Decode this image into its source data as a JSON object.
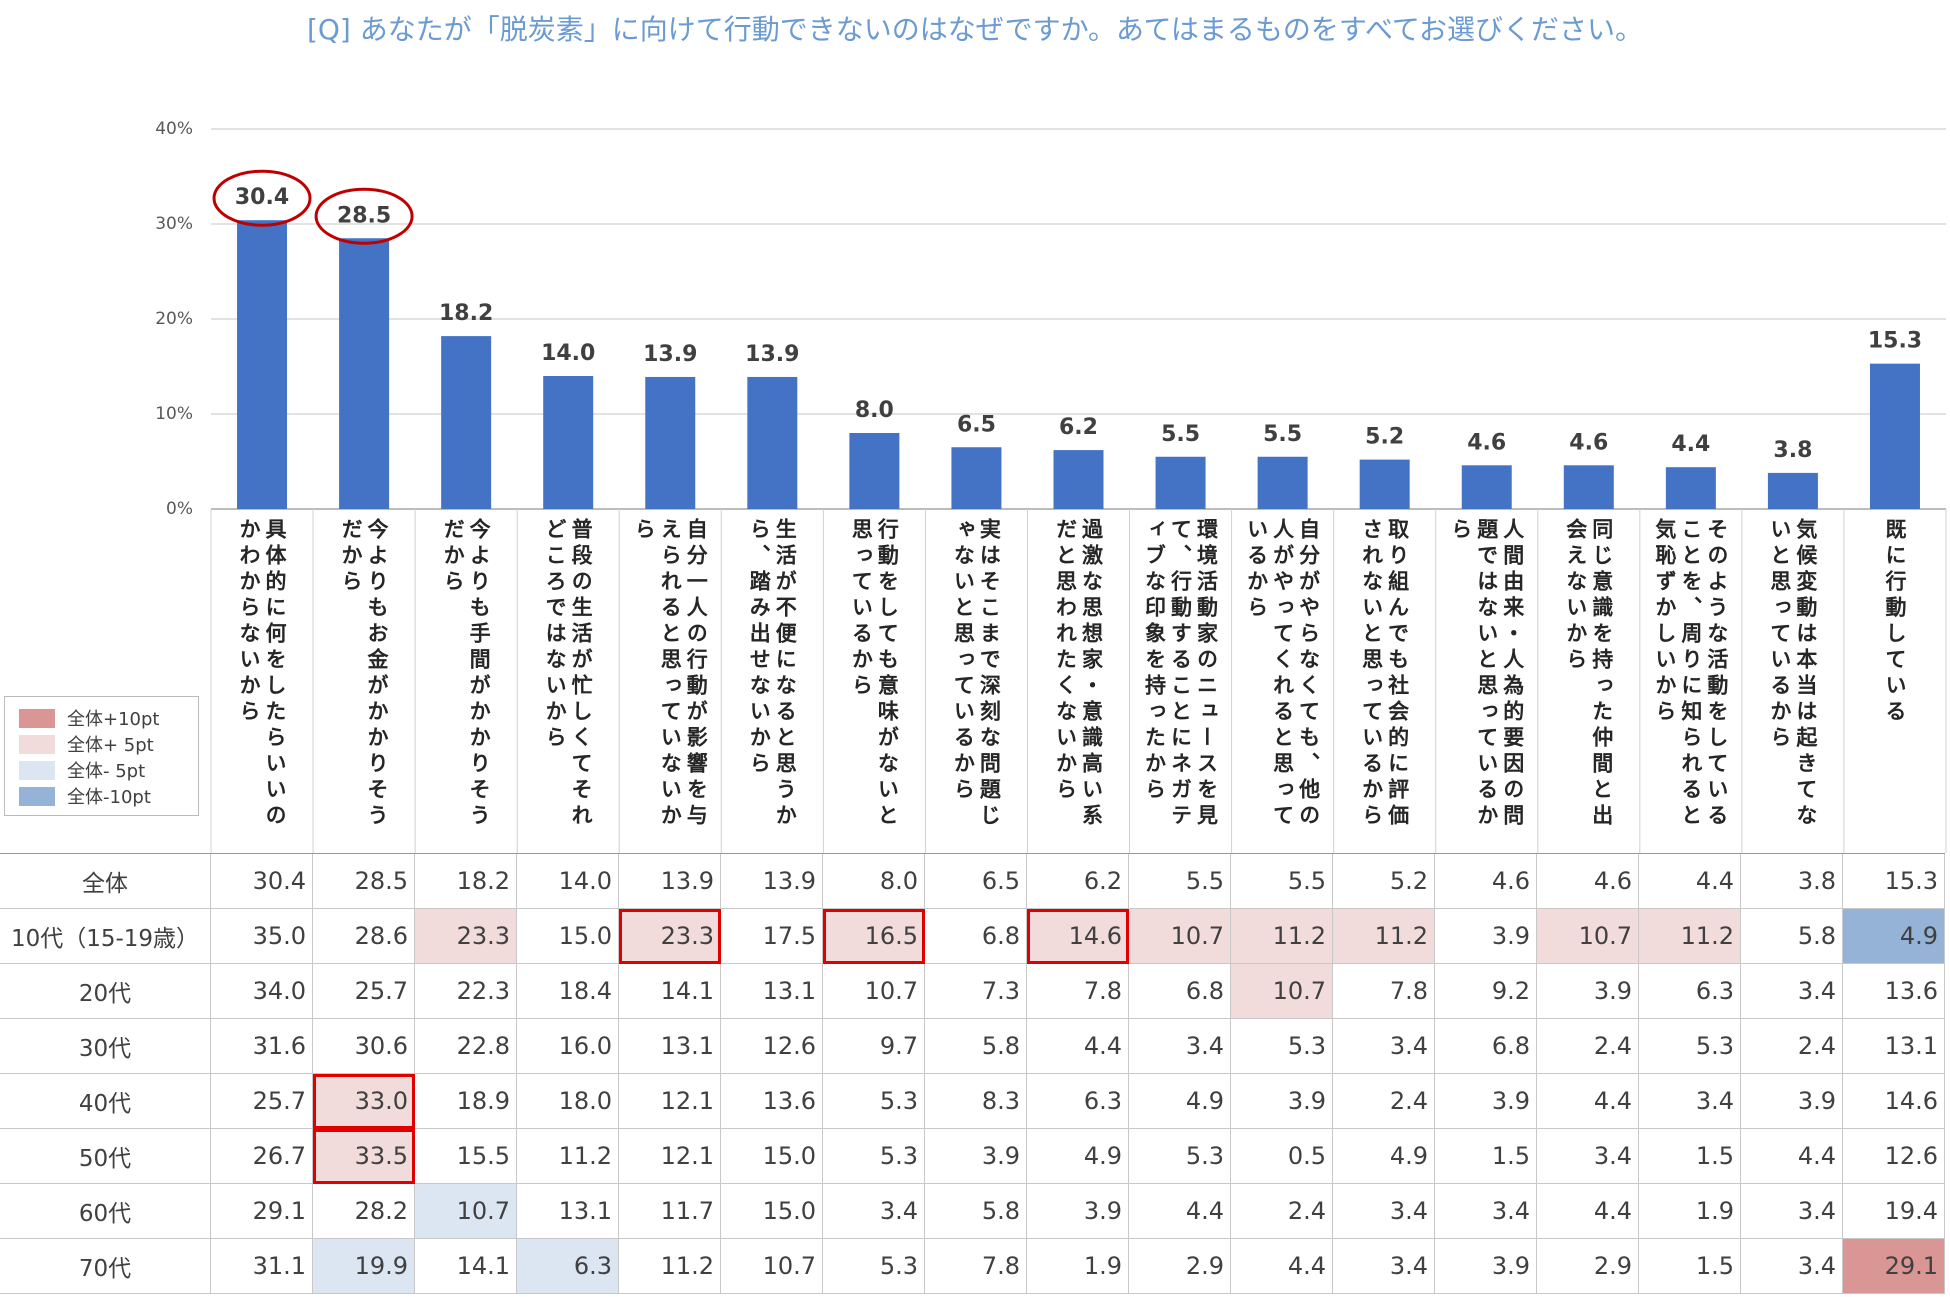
{
  "chart_data": {
    "type": "bar",
    "title": "[Q] あなたが「脱炭素」に向けて行動できないのはなぜですか。あてはまるものをすべてお選びください。",
    "categories": [
      "具体的に何をしたらいいのかわからないから",
      "今よりもお金がかかりそうだから",
      "今よりも手間がかかりそうだから",
      "普段の生活が忙しくてそれどころではないから",
      "自分一人の行動が影響を与えられると思っていないから",
      "生活が不便になると思うから、踏み出せないから",
      "行動をしても意味がないと思っているから",
      "実はそこまで深刻な問題じゃないと思っているから",
      "過激な思想家・意識高い系だと思われたくないから",
      "環境活動家のニュースを見て、行動することにネガティブな印象を持ったから",
      "自分がやらなくても、他の人がやってくれると思っているから",
      "取り組んでも社会的に評価されないと思っているから",
      "人間由来・人為的要因の問題ではないと思っているから",
      "同じ意識を持った仲間と出会えないから",
      "そのような活動をしていることを、周りに知られると気恥ずかしいから",
      "気候変動は本当は起きてないと思っているから",
      "既に行動している"
    ],
    "values": [
      30.4,
      28.5,
      18.2,
      14.0,
      13.9,
      13.9,
      8.0,
      6.5,
      6.2,
      5.5,
      5.5,
      5.2,
      4.6,
      4.6,
      4.4,
      3.8,
      15.3
    ],
    "value_labels": [
      "30.4",
      "28.5",
      "18.2",
      "14.0",
      "13.9",
      "13.9",
      "8.0",
      "6.5",
      "6.2",
      "5.5",
      "5.5",
      "5.2",
      "4.6",
      "4.6",
      "4.4",
      "3.8",
      "15.3"
    ],
    "color": "#4472c4",
    "circled": [
      0,
      1
    ],
    "circle_color": "#c00000",
    "ylim": [
      0,
      40
    ],
    "yticks": [
      {
        "value": 0,
        "label": "0%"
      },
      {
        "value": 10,
        "label": "10%"
      },
      {
        "value": 20,
        "label": "20%"
      },
      {
        "value": 30,
        "label": "30%"
      },
      {
        "value": 40,
        "label": "40%"
      }
    ],
    "grid": true
  },
  "table": {
    "legend": [
      {
        "label": "全体+10pt",
        "color": "#d99694"
      },
      {
        "label": "全体+ 5pt",
        "color": "#f2dcdb"
      },
      {
        "label": "全体- 5pt",
        "color": "#dce6f2"
      },
      {
        "label": "全体-10pt",
        "color": "#95b3d7"
      }
    ],
    "box_color": "#e00000",
    "rows": [
      {
        "label": "全体",
        "cells": [
          "30.4",
          "28.5",
          "18.2",
          "14.0",
          "13.9",
          "13.9",
          "8.0",
          "6.5",
          "6.2",
          "5.5",
          "5.5",
          "5.2",
          "4.6",
          "4.6",
          "4.4",
          "3.8",
          "15.3"
        ]
      },
      {
        "label": "10代（15-19歳）",
        "cells": [
          "35.0",
          "28.6",
          "23.3",
          "15.0",
          "23.3",
          "17.5",
          "16.5",
          "6.8",
          "14.6",
          "10.7",
          "11.2",
          "11.2",
          "3.9",
          "10.7",
          "11.2",
          "5.8",
          "4.9"
        ],
        "shaded": [
          [
            2,
            1
          ],
          [
            4,
            1
          ],
          [
            6,
            1
          ],
          [
            8,
            1
          ],
          [
            9,
            1
          ],
          [
            10,
            1
          ],
          [
            11,
            1
          ],
          [
            13,
            1
          ],
          [
            14,
            1
          ],
          [
            16,
            3
          ]
        ],
        "boxed": [
          4,
          6,
          8
        ]
      },
      {
        "label": "20代",
        "cells": [
          "34.0",
          "25.7",
          "22.3",
          "18.4",
          "14.1",
          "13.1",
          "10.7",
          "7.3",
          "7.8",
          "6.8",
          "10.7",
          "7.8",
          "9.2",
          "3.9",
          "6.3",
          "3.4",
          "13.6"
        ],
        "shaded": [
          [
            10,
            1
          ]
        ]
      },
      {
        "label": "30代",
        "cells": [
          "31.6",
          "30.6",
          "22.8",
          "16.0",
          "13.1",
          "12.6",
          "9.7",
          "5.8",
          "4.4",
          "3.4",
          "5.3",
          "3.4",
          "6.8",
          "2.4",
          "5.3",
          "2.4",
          "13.1"
        ]
      },
      {
        "label": "40代",
        "cells": [
          "25.7",
          "33.0",
          "18.9",
          "18.0",
          "12.1",
          "13.6",
          "5.3",
          "8.3",
          "6.3",
          "4.9",
          "3.9",
          "2.4",
          "3.9",
          "4.4",
          "3.4",
          "3.9",
          "14.6"
        ],
        "shaded": [
          [
            1,
            1
          ]
        ],
        "boxed": [
          1
        ]
      },
      {
        "label": "50代",
        "cells": [
          "26.7",
          "33.5",
          "15.5",
          "11.2",
          "12.1",
          "15.0",
          "5.3",
          "3.9",
          "4.9",
          "5.3",
          "0.5",
          "4.9",
          "1.5",
          "3.4",
          "1.5",
          "4.4",
          "12.6"
        ],
        "shaded": [
          [
            1,
            1
          ]
        ],
        "boxed": [
          1
        ]
      },
      {
        "label": "60代",
        "cells": [
          "29.1",
          "28.2",
          "10.7",
          "13.1",
          "11.7",
          "15.0",
          "3.4",
          "5.8",
          "3.9",
          "4.4",
          "2.4",
          "3.4",
          "3.4",
          "4.4",
          "1.9",
          "3.4",
          "19.4"
        ],
        "shaded": [
          [
            2,
            2
          ]
        ]
      },
      {
        "label": "70代",
        "cells": [
          "31.1",
          "19.9",
          "14.1",
          "6.3",
          "11.2",
          "10.7",
          "5.3",
          "7.8",
          "1.9",
          "2.9",
          "4.4",
          "3.4",
          "3.9",
          "2.9",
          "1.5",
          "3.4",
          "29.1"
        ],
        "shaded": [
          [
            1,
            2
          ],
          [
            3,
            2
          ],
          [
            16,
            0
          ]
        ]
      }
    ]
  }
}
